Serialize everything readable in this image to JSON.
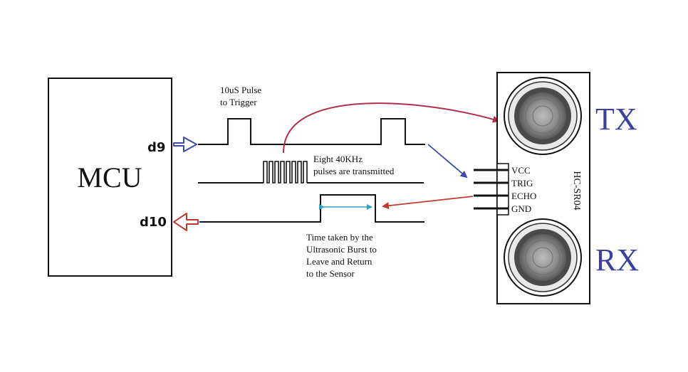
{
  "mcu": {
    "label": "MCU"
  },
  "pins": {
    "trigger_out": "d9",
    "echo_in": "d10"
  },
  "trigger": {
    "caption_line1": "10uS Pulse",
    "caption_line2": "to Trigger"
  },
  "burst": {
    "caption_line1": "Eight 40KHz",
    "caption_line2": "pulses are transmitted"
  },
  "echo": {
    "caption_line1": "Time taken by the",
    "caption_line2": "Ultrasonic Burst to",
    "caption_line3": "Leave and Return",
    "caption_line4": "to the Sensor"
  },
  "sensor": {
    "model": "HC-SR04",
    "tx_label": "TX",
    "rx_label": "RX",
    "pins": [
      "VCC",
      "TRIG",
      "ECHO",
      "GND"
    ]
  },
  "colors": {
    "line": "#111111",
    "tx_rx_text": "#3a3fa0",
    "blue_arrow": "#3b4ba8",
    "red_arrow": "#c0392b",
    "measure_arrow": "#2aa5c8",
    "transducer_ring": "#8a8a8a"
  }
}
